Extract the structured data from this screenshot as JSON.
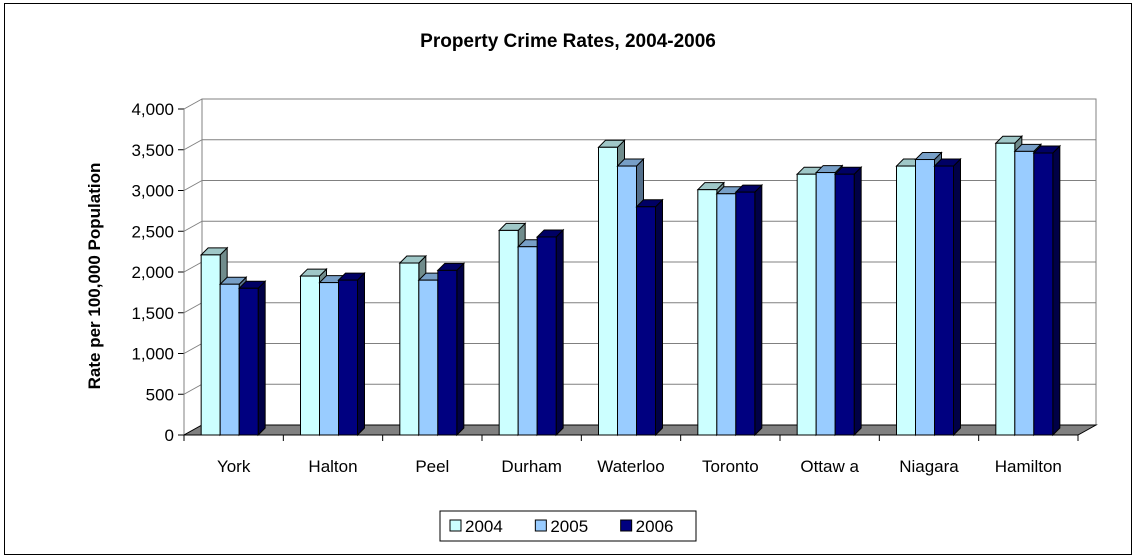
{
  "chart_data": {
    "type": "bar",
    "title": "Property Crime Rates, 2004-2006",
    "xlabel": "",
    "ylabel": "Rate per 100,000 Population",
    "categories": [
      "York",
      "Halton",
      "Peel",
      "Durham",
      "Waterloo",
      "Toronto",
      "Ottaw a",
      "Niagara",
      "Hamilton"
    ],
    "series": [
      {
        "name": "2004",
        "color": "#CCFFFF",
        "values": [
          2210,
          1950,
          2110,
          2510,
          3530,
          3010,
          3200,
          3300,
          3580
        ]
      },
      {
        "name": "2005",
        "color": "#99CCFF",
        "values": [
          1850,
          1870,
          1900,
          2310,
          3300,
          2960,
          3220,
          3380,
          3480
        ]
      },
      {
        "name": "2006",
        "color": "#000080",
        "values": [
          1800,
          1900,
          2020,
          2430,
          2800,
          2980,
          3200,
          3300,
          3460
        ]
      }
    ],
    "ylim": [
      0,
      4000
    ],
    "yticks": [
      "0",
      "500",
      "1,000",
      "1,500",
      "2,000",
      "2,500",
      "3,000",
      "3,500",
      "4,000"
    ],
    "grid": true,
    "legend_position": "bottom"
  }
}
